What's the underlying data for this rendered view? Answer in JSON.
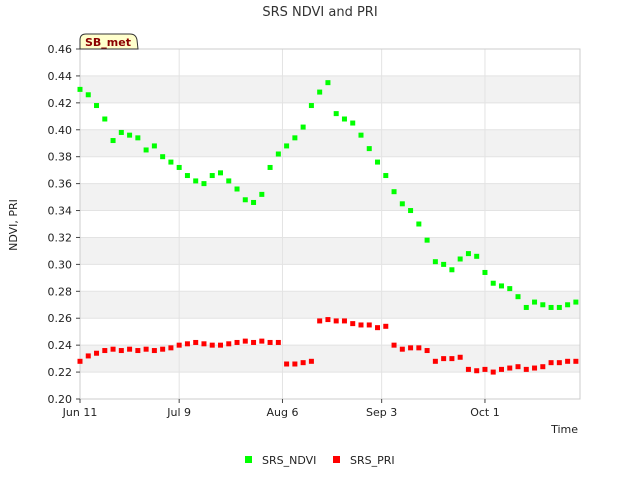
{
  "chart_data": {
    "type": "scatter",
    "title": "SRS NDVI and PRI",
    "xlabel": "Time",
    "ylabel": "NDVI, PRI",
    "badge": "SB_met",
    "xlim": [
      0,
      121
    ],
    "ylim": [
      0.2,
      0.46
    ],
    "yticks": [
      0.2,
      0.22,
      0.24,
      0.26,
      0.28,
      0.3,
      0.32,
      0.34,
      0.36,
      0.38,
      0.4,
      0.42,
      0.44,
      0.46
    ],
    "ytick_labels": [
      "0.20",
      "0.22",
      "0.24",
      "0.26",
      "0.28",
      "0.30",
      "0.32",
      "0.34",
      "0.36",
      "0.38",
      "0.40",
      "0.42",
      "0.44",
      "0.46"
    ],
    "xticks": [
      0,
      24,
      49,
      73,
      98
    ],
    "xtick_labels": [
      "Jun 11",
      "Jul 9",
      "Aug 6",
      "Sep 3",
      "Oct 1"
    ],
    "x_unit": "days since Jun 11",
    "grid": true,
    "legend_position": "bottom-center",
    "series": [
      {
        "name": "SRS_NDVI",
        "color": "#00ff00",
        "x": [
          0,
          2,
          4,
          6,
          8,
          10,
          12,
          14,
          16,
          18,
          20,
          22,
          24,
          26,
          28,
          30,
          32,
          34,
          36,
          38,
          40,
          42,
          44,
          46,
          48,
          50,
          52,
          54,
          56,
          58,
          60,
          62,
          64,
          66,
          68,
          70,
          72,
          74,
          76,
          78,
          80,
          82,
          84,
          86,
          88,
          90,
          92,
          94,
          96,
          98,
          100,
          102,
          104,
          106,
          108,
          110,
          112,
          114,
          116,
          118,
          120
        ],
        "y": [
          0.43,
          0.426,
          0.418,
          0.408,
          0.392,
          0.398,
          0.396,
          0.394,
          0.385,
          0.388,
          0.38,
          0.376,
          0.372,
          0.366,
          0.362,
          0.36,
          0.366,
          0.368,
          0.362,
          0.356,
          0.348,
          0.346,
          0.352,
          0.372,
          0.382,
          0.388,
          0.394,
          0.402,
          0.418,
          0.428,
          0.435,
          0.412,
          0.408,
          0.405,
          0.396,
          0.386,
          0.376,
          0.366,
          0.354,
          0.345,
          0.34,
          0.33,
          0.318,
          0.302,
          0.3,
          0.296,
          0.304,
          0.308,
          0.306,
          0.294,
          0.286,
          0.284,
          0.282,
          0.276,
          0.268,
          0.272,
          0.27,
          0.268,
          0.268,
          0.27,
          0.272
        ]
      },
      {
        "name": "SRS_PRI",
        "color": "#ff0000",
        "x": [
          0,
          2,
          4,
          6,
          8,
          10,
          12,
          14,
          16,
          18,
          20,
          22,
          24,
          26,
          28,
          30,
          32,
          34,
          36,
          38,
          40,
          42,
          44,
          46,
          48,
          50,
          52,
          54,
          56,
          58,
          60,
          62,
          64,
          66,
          68,
          70,
          72,
          74,
          76,
          78,
          80,
          82,
          84,
          86,
          88,
          90,
          92,
          94,
          96,
          98,
          100,
          102,
          104,
          106,
          108,
          110,
          112,
          114,
          116,
          118,
          120
        ],
        "y": [
          0.228,
          0.232,
          0.234,
          0.236,
          0.237,
          0.236,
          0.237,
          0.236,
          0.237,
          0.236,
          0.237,
          0.238,
          0.24,
          0.241,
          0.242,
          0.241,
          0.24,
          0.24,
          0.241,
          0.242,
          0.243,
          0.242,
          0.243,
          0.242,
          0.242,
          0.226,
          0.226,
          0.227,
          0.228,
          0.258,
          0.259,
          0.258,
          0.258,
          0.256,
          0.255,
          0.255,
          0.253,
          0.254,
          0.24,
          0.237,
          0.238,
          0.238,
          0.236,
          0.228,
          0.23,
          0.23,
          0.231,
          0.222,
          0.221,
          0.222,
          0.22,
          0.222,
          0.223,
          0.224,
          0.222,
          0.223,
          0.224,
          0.227,
          0.227,
          0.228,
          0.228
        ]
      }
    ]
  }
}
